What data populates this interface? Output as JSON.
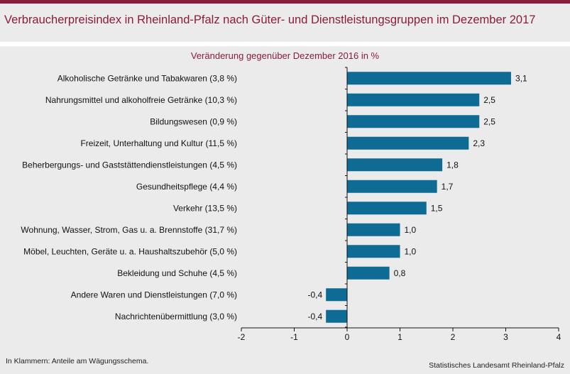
{
  "header": {
    "title": "Verbraucherpreisindex in Rheinland-Pfalz nach Güter- und Dienstleistungsgruppen im Dezember 2017"
  },
  "footer": {
    "note": "In Klammern: Anteile am Wägungsschema.",
    "source": "Statistisches Landesamt Rheinland-Pfalz"
  },
  "colors": {
    "bar": "#0e6c94",
    "accent": "#8b1c3a"
  },
  "chart_data": {
    "type": "bar",
    "orientation": "horizontal",
    "title": "Verbraucherpreisindex in Rheinland-Pfalz nach Güter- und Dienstleistungsgruppen im Dezember 2017",
    "subtitle": "Veränderung gegenüber Dezember 2016 in %",
    "categories": [
      "Alkoholische Getränke und Tabakwaren (3,8 %)",
      "Nahrungsmittel und alkoholfreie Getränke (10,3 %)",
      "Bildungswesen (0,9 %)",
      "Freizeit, Unterhaltung und Kultur (11,5 %)",
      "Beherbergungs- und Gaststättendienstleistungen (4,5 %)",
      "Gesundheitspflege (4,4 %)",
      "Verkehr (13,5 %)",
      "Wohnung, Wasser, Strom, Gas u. a. Brennstoffe (31,7 %)",
      "Möbel, Leuchten, Geräte u. a. Haushaltszubehör  (5,0 %)",
      "Bekleidung und Schuhe (4,5 %)",
      "Andere Waren und Dienstleistungen (7,0 %)",
      "Nachrichtenübermittlung (3,0 %)"
    ],
    "values": [
      3.1,
      2.5,
      2.5,
      2.3,
      1.8,
      1.7,
      1.5,
      1.0,
      1.0,
      0.8,
      -0.4,
      -0.4
    ],
    "value_labels": [
      "3,1",
      "2,5",
      "2,5",
      "2,3",
      "1,8",
      "1,7",
      "1,5",
      "1,0",
      "1,0",
      "0,8",
      "-0,4",
      "-0,4"
    ],
    "xlim": [
      -2,
      4
    ],
    "xticks": [
      -2,
      -1,
      0,
      1,
      2,
      3,
      4
    ],
    "xtick_labels": [
      "-2",
      "-1",
      "0",
      "1",
      "2",
      "3",
      "4"
    ],
    "grid": false,
    "legend": "none"
  }
}
